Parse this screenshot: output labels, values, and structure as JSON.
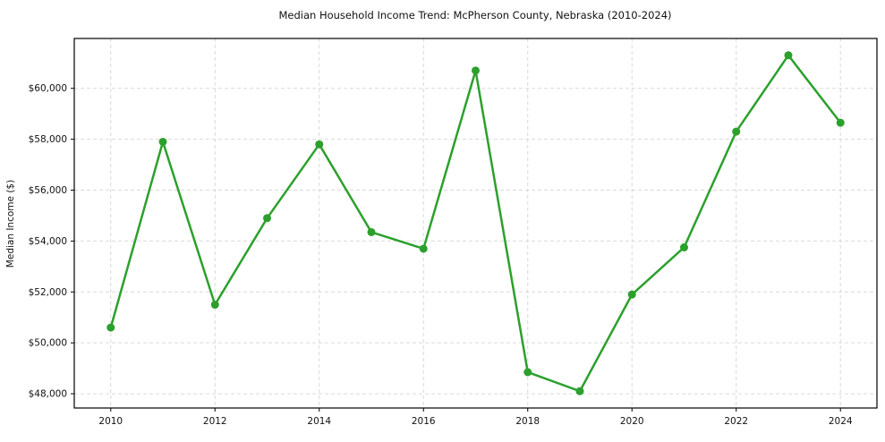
{
  "chart_data": {
    "type": "line",
    "title": "Median Household Income Trend: McPherson County, Nebraska (2010-2024)",
    "xlabel": "",
    "ylabel": "Median Income ($)",
    "x": [
      2010,
      2011,
      2012,
      2013,
      2014,
      2015,
      2016,
      2017,
      2018,
      2019,
      2020,
      2021,
      2022,
      2023,
      2024
    ],
    "values": [
      50600,
      57900,
      51500,
      54900,
      57800,
      54350,
      53700,
      60700,
      48850,
      48100,
      51900,
      53750,
      58300,
      61300,
      58650
    ],
    "series_name": "Median household income",
    "xlim": [
      2009.3,
      2024.7
    ],
    "ylim": [
      47440,
      61960
    ],
    "xticks": [
      2010,
      2012,
      2014,
      2016,
      2018,
      2020,
      2022,
      2024
    ],
    "xtick_labels": [
      "2010",
      "2012",
      "2014",
      "2016",
      "2018",
      "2020",
      "2022",
      "2024"
    ],
    "yticks": [
      48000,
      50000,
      52000,
      54000,
      56000,
      58000,
      60000
    ],
    "ytick_labels": [
      "$48,000",
      "$50,000",
      "$52,000",
      "$54,000",
      "$56,000",
      "$58,000",
      "$60,000"
    ],
    "grid": true,
    "grid_style": "dashed",
    "legend": false,
    "line_color": "#2ca02c",
    "grid_color": "#d3d3d3",
    "axis_color": "#000000",
    "background": "#ffffff",
    "marker": "circle"
  }
}
